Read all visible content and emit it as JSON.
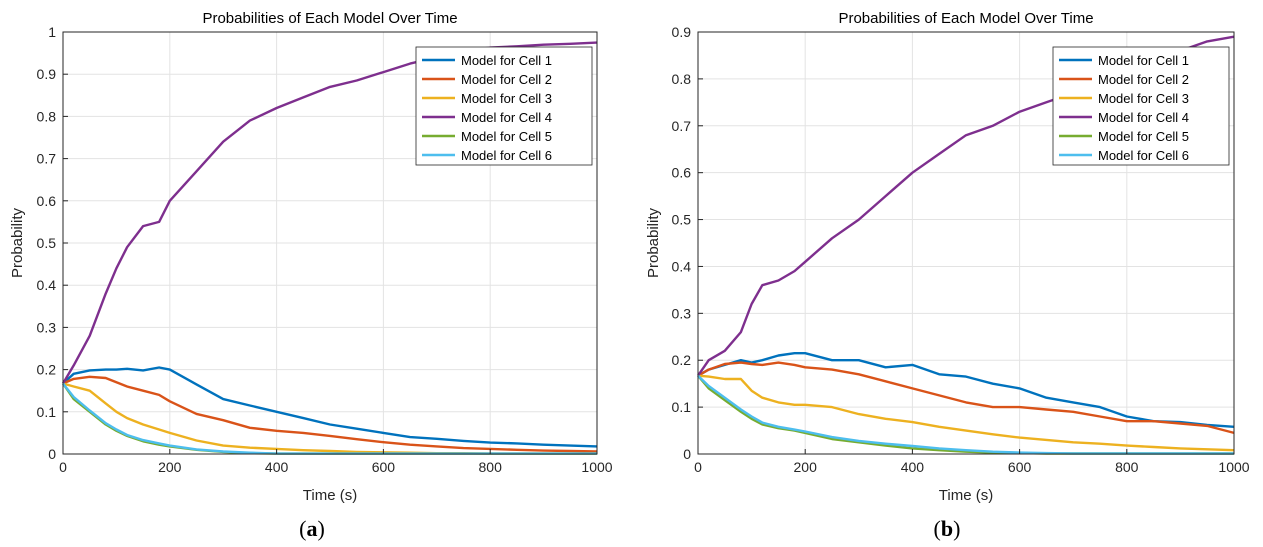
{
  "panels": [
    {
      "sublabel_prefix": "(",
      "sublabel_letter": "a",
      "sublabel_suffix": ")",
      "chart_data": {
        "type": "line",
        "title": "Probabilities of Each Model Over Time",
        "xlabel": "Time (s)",
        "ylabel": "Probability",
        "xlim": [
          0,
          1000
        ],
        "ylim": [
          0,
          1
        ],
        "xticks": [
          0,
          200,
          400,
          600,
          800,
          1000
        ],
        "yticks": [
          0,
          0.1,
          0.2,
          0.3,
          0.4,
          0.5,
          0.6,
          0.7,
          0.8,
          0.9,
          1
        ],
        "grid": true,
        "legend_position": "top-right",
        "x": [
          0,
          20,
          50,
          80,
          100,
          120,
          150,
          180,
          200,
          250,
          300,
          350,
          400,
          450,
          500,
          550,
          600,
          650,
          700,
          750,
          800,
          850,
          900,
          950,
          1000
        ],
        "series": [
          {
            "name": "Model for Cell 1",
            "color": "#0072BD",
            "values": [
              0.167,
              0.19,
              0.198,
              0.2,
              0.2,
              0.202,
              0.198,
              0.205,
              0.2,
              0.165,
              0.13,
              0.115,
              0.1,
              0.085,
              0.07,
              0.06,
              0.05,
              0.04,
              0.036,
              0.031,
              0.027,
              0.025,
              0.022,
              0.02,
              0.018
            ]
          },
          {
            "name": "Model for Cell 2",
            "color": "#D95319",
            "values": [
              0.167,
              0.178,
              0.183,
              0.18,
              0.17,
              0.16,
              0.15,
              0.14,
              0.125,
              0.095,
              0.08,
              0.062,
              0.055,
              0.05,
              0.043,
              0.035,
              0.028,
              0.022,
              0.018,
              0.014,
              0.012,
              0.01,
              0.008,
              0.007,
              0.006
            ]
          },
          {
            "name": "Model for Cell 3",
            "color": "#EDB120",
            "values": [
              0.167,
              0.16,
              0.15,
              0.12,
              0.1,
              0.085,
              0.07,
              0.058,
              0.05,
              0.032,
              0.02,
              0.015,
              0.012,
              0.009,
              0.007,
              0.005,
              0.004,
              0.003,
              0.002,
              0.002,
              0.001,
              0.001,
              0.001,
              0.001,
              0.001
            ]
          },
          {
            "name": "Model for Cell 4",
            "color": "#7E2F8E",
            "values": [
              0.167,
              0.21,
              0.28,
              0.38,
              0.44,
              0.49,
              0.54,
              0.55,
              0.6,
              0.67,
              0.74,
              0.79,
              0.82,
              0.845,
              0.87,
              0.885,
              0.905,
              0.925,
              0.94,
              0.955,
              0.963,
              0.966,
              0.97,
              0.972,
              0.975
            ]
          },
          {
            "name": "Model for Cell 5",
            "color": "#77AC30",
            "values": [
              0.167,
              0.13,
              0.1,
              0.07,
              0.055,
              0.043,
              0.03,
              0.022,
              0.018,
              0.01,
              0.005,
              0.002,
              0.001,
              0.001,
              0.001,
              0.001,
              0.001,
              0.001,
              0.001,
              0.001,
              0.001,
              0.001,
              0.001,
              0.001,
              0.001
            ]
          },
          {
            "name": "Model for Cell 6",
            "color": "#4DBEEE",
            "values": [
              0.167,
              0.135,
              0.103,
              0.073,
              0.058,
              0.045,
              0.033,
              0.025,
              0.02,
              0.011,
              0.006,
              0.003,
              0.001,
              0.001,
              0.001,
              0.001,
              0.001,
              0.001,
              0.001,
              0.001,
              0.001,
              0.001,
              0.001,
              0.001,
              0.001
            ]
          }
        ]
      }
    },
    {
      "sublabel_prefix": "(",
      "sublabel_letter": "b",
      "sublabel_suffix": ")",
      "chart_data": {
        "type": "line",
        "title": "Probabilities of Each Model Over Time",
        "xlabel": "Time (s)",
        "ylabel": "Probability",
        "xlim": [
          0,
          1000
        ],
        "ylim": [
          0,
          0.9
        ],
        "xticks": [
          0,
          200,
          400,
          600,
          800,
          1000
        ],
        "yticks": [
          0,
          0.1,
          0.2,
          0.3,
          0.4,
          0.5,
          0.6,
          0.7,
          0.8,
          0.9
        ],
        "grid": true,
        "legend_position": "top-right",
        "x": [
          0,
          20,
          50,
          80,
          100,
          120,
          150,
          180,
          200,
          250,
          300,
          350,
          400,
          450,
          500,
          550,
          600,
          650,
          700,
          750,
          800,
          850,
          900,
          950,
          1000
        ],
        "series": [
          {
            "name": "Model for Cell 1",
            "color": "#0072BD",
            "values": [
              0.167,
              0.18,
              0.19,
              0.2,
              0.195,
              0.2,
              0.21,
              0.215,
              0.215,
              0.2,
              0.2,
              0.185,
              0.19,
              0.17,
              0.165,
              0.15,
              0.14,
              0.12,
              0.11,
              0.1,
              0.08,
              0.07,
              0.068,
              0.062,
              0.058
            ]
          },
          {
            "name": "Model for Cell 2",
            "color": "#D95319",
            "values": [
              0.167,
              0.18,
              0.192,
              0.195,
              0.192,
              0.19,
              0.195,
              0.19,
              0.185,
              0.18,
              0.17,
              0.155,
              0.14,
              0.125,
              0.11,
              0.1,
              0.1,
              0.095,
              0.09,
              0.08,
              0.07,
              0.07,
              0.065,
              0.06,
              0.045
            ]
          },
          {
            "name": "Model for Cell 3",
            "color": "#EDB120",
            "values": [
              0.167,
              0.165,
              0.16,
              0.16,
              0.135,
              0.12,
              0.11,
              0.105,
              0.105,
              0.1,
              0.085,
              0.075,
              0.068,
              0.058,
              0.05,
              0.042,
              0.035,
              0.03,
              0.025,
              0.022,
              0.018,
              0.015,
              0.012,
              0.01,
              0.008
            ]
          },
          {
            "name": "Model for Cell 4",
            "color": "#7E2F8E",
            "values": [
              0.167,
              0.2,
              0.22,
              0.26,
              0.32,
              0.36,
              0.37,
              0.39,
              0.41,
              0.46,
              0.5,
              0.55,
              0.6,
              0.64,
              0.68,
              0.7,
              0.73,
              0.75,
              0.77,
              0.8,
              0.82,
              0.84,
              0.86,
              0.88,
              0.89
            ]
          },
          {
            "name": "Model for Cell 5",
            "color": "#77AC30",
            "values": [
              0.167,
              0.14,
              0.115,
              0.09,
              0.075,
              0.063,
              0.055,
              0.05,
              0.045,
              0.032,
              0.025,
              0.018,
              0.012,
              0.008,
              0.005,
              0.003,
              0.002,
              0.001,
              0.001,
              0.001,
              0.001,
              0.001,
              0.001,
              0.001,
              0.001
            ]
          },
          {
            "name": "Model for Cell 6",
            "color": "#4DBEEE",
            "values": [
              0.167,
              0.145,
              0.12,
              0.095,
              0.08,
              0.067,
              0.058,
              0.052,
              0.048,
              0.036,
              0.028,
              0.022,
              0.017,
              0.012,
              0.008,
              0.005,
              0.003,
              0.002,
              0.001,
              0.001,
              0.001,
              0.001,
              0.001,
              0.001,
              0.001
            ]
          }
        ]
      }
    }
  ]
}
